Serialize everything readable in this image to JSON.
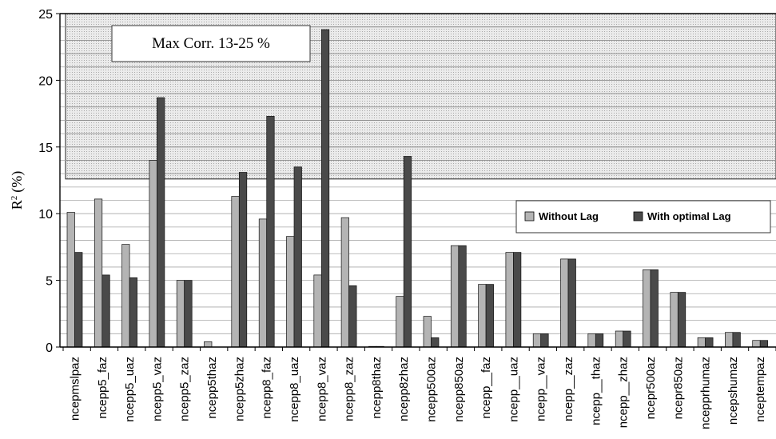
{
  "chart_data": {
    "type": "bar",
    "ylabel": "R",
    "ylabel_sup": "2",
    "ylabel_unit": "(%)",
    "ylim": [
      0,
      25
    ],
    "yticks": [
      "0",
      "5",
      "10",
      "15",
      "20",
      "25"
    ],
    "grid": true,
    "legend_position": "right",
    "categories": [
      "ncepmslpaz",
      "ncepp5_faz",
      "ncepp5_uaz",
      "ncepp5_vaz",
      "ncepp5_zaz",
      "ncepp5thaz",
      "ncepp5zhaz",
      "ncepp8_faz",
      "ncepp8_uaz",
      "ncepp8_vaz",
      "ncepp8_zaz",
      "ncepp8thaz",
      "ncepp8zhaz",
      "ncepp500az",
      "ncepp850az",
      "ncepp__faz",
      "ncepp__uaz",
      "ncepp__vaz",
      "ncepp__zaz",
      "ncepp__thaz",
      "ncepp__zhaz",
      "ncepr500az",
      "ncepr850az",
      "ncepprhumaz",
      "ncepshumaz",
      "nceptempaz"
    ],
    "series": [
      {
        "name": "Without Lag",
        "color": "#b4b4b4",
        "values": [
          10.1,
          11.1,
          7.7,
          14.0,
          5.0,
          0.4,
          11.3,
          9.6,
          8.3,
          5.4,
          9.7,
          0.05,
          3.8,
          2.3,
          7.6,
          4.7,
          7.1,
          1.0,
          6.6,
          1.0,
          1.2,
          5.8,
          4.1,
          0.7,
          1.1,
          0.5
        ]
      },
      {
        "name": "With optimal Lag",
        "color": "#4a4a4a",
        "values": [
          7.1,
          5.4,
          5.2,
          18.7,
          5.0,
          0.0,
          13.1,
          17.3,
          13.5,
          23.8,
          4.6,
          0.05,
          14.3,
          0.7,
          7.6,
          4.7,
          7.1,
          1.0,
          6.6,
          1.0,
          1.2,
          5.8,
          4.1,
          0.7,
          1.1,
          0.5
        ]
      }
    ],
    "shaded_region": {
      "y_from": 12.6,
      "y_to": 25,
      "label": "Max Corr. 13-25 %"
    }
  }
}
